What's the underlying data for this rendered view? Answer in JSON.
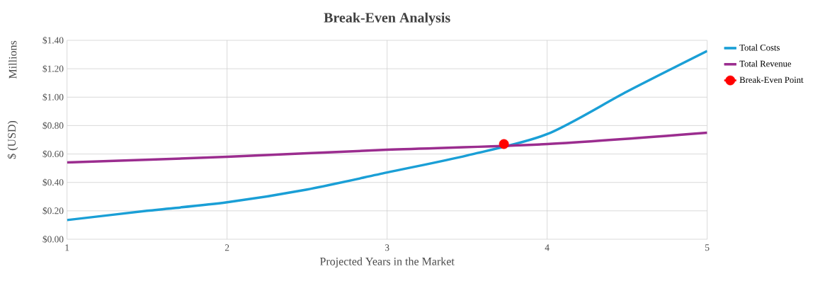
{
  "chart_data": {
    "type": "line",
    "title": "Break-Even Analysis",
    "xlabel": "Projected Years in the Market",
    "ylabel": "$ (USD)",
    "annotations": [
      "Millions"
    ],
    "xlim": [
      1,
      5
    ],
    "xticks": [
      1,
      2,
      3,
      4,
      5
    ],
    "ylim": [
      0,
      1.4
    ],
    "yticks": [
      {
        "value": 0,
        "label": "$0.00"
      },
      {
        "value": 0.2,
        "label": "$0.20"
      },
      {
        "value": 0.4,
        "label": "$0.40"
      },
      {
        "value": 0.6,
        "label": "$0.60"
      },
      {
        "value": 0.8,
        "label": "$0.80"
      },
      {
        "value": 1.0,
        "label": "$1.00"
      },
      {
        "value": 1.2,
        "label": "$1.20"
      },
      {
        "value": 1.4,
        "label": "$1.40"
      }
    ],
    "grid": true,
    "legend": "right",
    "line_style": "solid",
    "series": [
      {
        "name": "Total Costs",
        "color": "#1a9fd6",
        "x": [
          1,
          1.5,
          2,
          2.5,
          3,
          3.5,
          4,
          4.5,
          5
        ],
        "values": [
          0.135,
          0.2,
          0.26,
          0.35,
          0.47,
          0.59,
          0.74,
          1.04,
          1.325
        ]
      },
      {
        "name": "Total Revenue",
        "color": "#9b2d8f",
        "x": [
          1,
          2,
          3,
          4,
          5
        ],
        "values": [
          0.54,
          0.58,
          0.63,
          0.67,
          0.75
        ]
      },
      {
        "name": "Break-Even Point",
        "type": "scatter",
        "marker": "circle",
        "color": "#ff0000",
        "x": [
          3.73
        ],
        "values": [
          0.67
        ]
      }
    ]
  }
}
